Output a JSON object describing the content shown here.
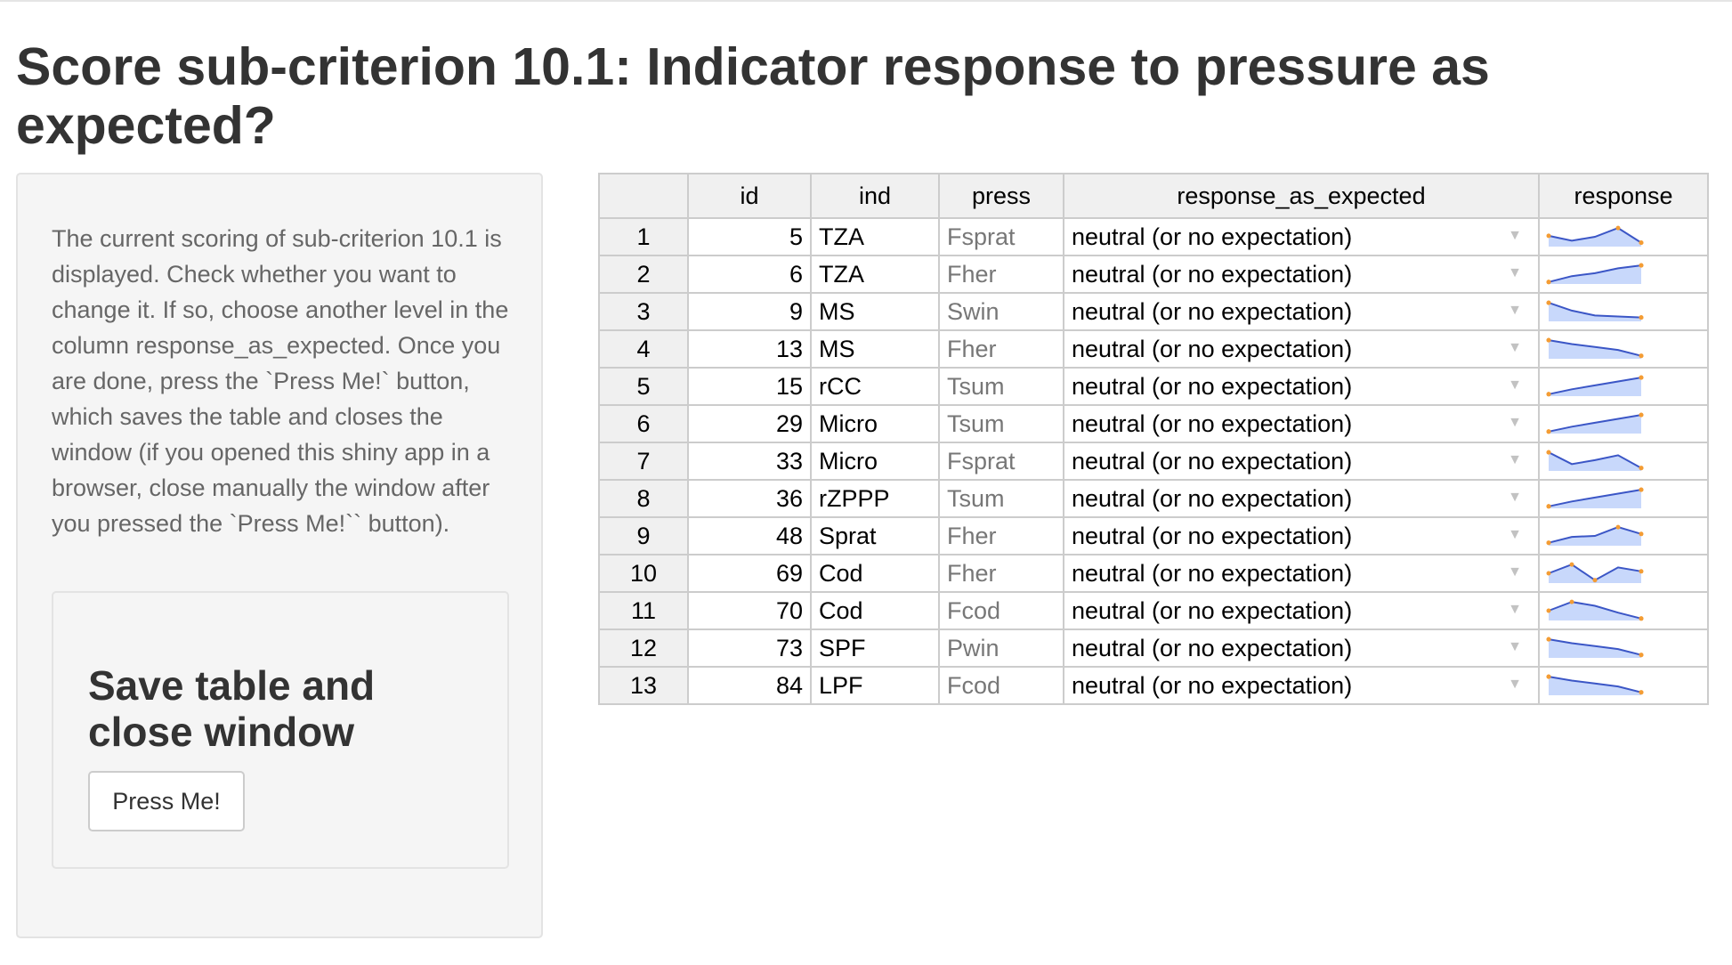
{
  "page": {
    "title": "Score sub-criterion 10.1: Indicator response to pressure as expected?"
  },
  "sidebar": {
    "instructions": "The current scoring of sub-criterion 10.1 is displayed. Check whether you want to change it. If so, choose another level in the column response_as_expected. Once you are done, press the `Press Me!` button, which saves the table and closes the window (if you opened this shiny app in a browser, close manually the window after you pressed the `Press Me!`` button).",
    "save_heading": "Save table and close window",
    "button_label": "Press Me!"
  },
  "table": {
    "columns": [
      "",
      "id",
      "ind",
      "press",
      "response_as_expected",
      "response"
    ],
    "rows": [
      {
        "row": "1",
        "id": "5",
        "ind": "TZA",
        "press": "Fsprat",
        "response_as_expected": "neutral (or no expectation)",
        "spark": [
          0.55,
          0.3,
          0.5,
          0.95,
          0.2
        ]
      },
      {
        "row": "2",
        "id": "6",
        "ind": "TZA",
        "press": "Fher",
        "response_as_expected": "neutral (or no expectation)",
        "spark": [
          0.1,
          0.4,
          0.55,
          0.8,
          0.95
        ]
      },
      {
        "row": "3",
        "id": "9",
        "ind": "MS",
        "press": "Swin",
        "response_as_expected": "neutral (or no expectation)",
        "spark": [
          0.95,
          0.55,
          0.3,
          0.25,
          0.2
        ]
      },
      {
        "row": "4",
        "id": "13",
        "ind": "MS",
        "press": "Fher",
        "response_as_expected": "neutral (or no expectation)",
        "spark": [
          0.95,
          0.75,
          0.6,
          0.45,
          0.15
        ]
      },
      {
        "row": "5",
        "id": "15",
        "ind": "rCC",
        "press": "Tsum",
        "response_as_expected": "neutral (or no expectation)",
        "spark": [
          0.1,
          0.35,
          0.55,
          0.75,
          0.95
        ]
      },
      {
        "row": "6",
        "id": "29",
        "ind": "Micro",
        "press": "Tsum",
        "response_as_expected": "neutral (or no expectation)",
        "spark": [
          0.1,
          0.35,
          0.55,
          0.75,
          0.95
        ]
      },
      {
        "row": "7",
        "id": "33",
        "ind": "Micro",
        "press": "Fsprat",
        "response_as_expected": "neutral (or no expectation)",
        "spark": [
          0.95,
          0.35,
          0.55,
          0.8,
          0.15
        ]
      },
      {
        "row": "8",
        "id": "36",
        "ind": "rZPPP",
        "press": "Tsum",
        "response_as_expected": "neutral (or no expectation)",
        "spark": [
          0.1,
          0.35,
          0.55,
          0.75,
          0.95
        ]
      },
      {
        "row": "9",
        "id": "48",
        "ind": "Sprat",
        "press": "Fher",
        "response_as_expected": "neutral (or no expectation)",
        "spark": [
          0.15,
          0.45,
          0.5,
          0.95,
          0.6
        ]
      },
      {
        "row": "10",
        "id": "69",
        "ind": "Cod",
        "press": "Fher",
        "response_as_expected": "neutral (or no expectation)",
        "spark": [
          0.5,
          0.95,
          0.15,
          0.8,
          0.6
        ]
      },
      {
        "row": "11",
        "id": "70",
        "ind": "Cod",
        "press": "Fcod",
        "response_as_expected": "neutral (or no expectation)",
        "spark": [
          0.5,
          0.95,
          0.75,
          0.4,
          0.1
        ]
      },
      {
        "row": "12",
        "id": "73",
        "ind": "SPF",
        "press": "Pwin",
        "response_as_expected": "neutral (or no expectation)",
        "spark": [
          0.95,
          0.75,
          0.6,
          0.45,
          0.15
        ]
      },
      {
        "row": "13",
        "id": "84",
        "ind": "LPF",
        "press": "Fcod",
        "response_as_expected": "neutral (or no expectation)",
        "spark": [
          0.95,
          0.75,
          0.6,
          0.45,
          0.15
        ]
      }
    ]
  },
  "style": {
    "spark_line": "#3b56c6",
    "spark_fill": "#c8d8fb",
    "spark_point": "#f39c34"
  }
}
